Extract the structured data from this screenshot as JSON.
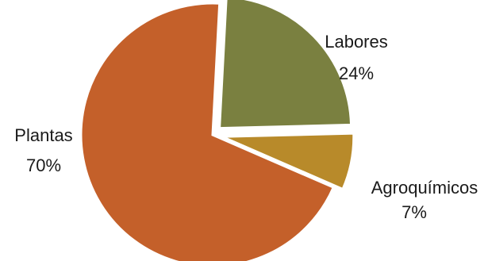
{
  "chart_data": {
    "type": "pie",
    "title": "",
    "slices": [
      {
        "label": "Labores",
        "value": 24,
        "value_label": "24%",
        "color": "#7a8040",
        "exploded": true
      },
      {
        "label": "Agroquímicos",
        "value": 7,
        "value_label": "7%",
        "color": "#b88a2a",
        "exploded": true
      },
      {
        "label": "Plantas",
        "value": 70,
        "value_label": "70%",
        "color": "#c4602a",
        "exploded": false
      }
    ],
    "legend": "none",
    "start_angle_deg": 3
  }
}
